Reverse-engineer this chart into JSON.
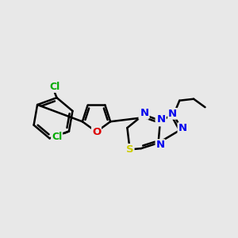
{
  "bg_color": "#e8e8e8",
  "atom_colors": {
    "C": "#000000",
    "N": "#0000ee",
    "O": "#dd0000",
    "S": "#cccc00",
    "Cl": "#00aa00"
  },
  "bond_color": "#000000",
  "bond_width": 1.8,
  "font_size": 9.5,
  "figsize": [
    3.0,
    3.0
  ],
  "dpi": 100,
  "xlim": [
    0,
    12
  ],
  "ylim": [
    1,
    10
  ]
}
